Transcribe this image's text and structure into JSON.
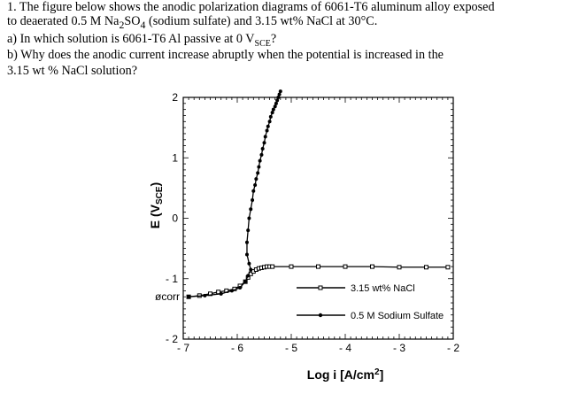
{
  "question": {
    "line1": "1. The figure below shows the anodic polarization diagrams of 6061-T6 aluminum alloy exposed",
    "line2_pre": "to deaerated 0.5 M Na",
    "line2_sub1": "2",
    "line2_mid": "SO",
    "line2_sub2": "4",
    "line2_post": " (sodium sulfate) and 3.15 wt% NaCl at 30°C.",
    "line3_pre": "a) In which solution is 6061-T6 Al passive at 0 V",
    "line3_sub": "SCE",
    "line3_post": "?",
    "line4": "b) Why does the anodic current increase abruptly when the potential is increased in the",
    "line5": "3.15 wt % NaCl solution?"
  },
  "chart_data": {
    "type": "line",
    "xlabel_main": "Log i [A/cm",
    "xlabel_sup": "2",
    "xlabel_end": "]",
    "ylabel_main": "E (V",
    "ylabel_sub": "SCE",
    "ylabel_end": ")",
    "xlim": [
      -7,
      -2
    ],
    "ylim": [
      -2,
      2
    ],
    "x_ticks": [
      -7,
      -6,
      -5,
      -4,
      -3,
      -2
    ],
    "x_tick_labels": [
      "- 7",
      "- 6",
      "- 5",
      "- 4",
      "- 3",
      "- 2"
    ],
    "y_ticks": [
      2,
      1,
      0,
      -1,
      -2
    ],
    "y_tick_labels": [
      "2",
      "1",
      "0",
      "- 1",
      "- 2"
    ],
    "ecorr_label": "øcorr",
    "ecorr_value": -1.3,
    "legend_placement": "lower-right",
    "series": [
      {
        "name": "3.15 wt% NaCl",
        "marker": "square",
        "x": [
          -6.9,
          -6.7,
          -6.5,
          -6.35,
          -6.2,
          -6.05,
          -5.95,
          -5.85,
          -5.8,
          -5.75,
          -5.7,
          -5.65,
          -5.6,
          -5.55,
          -5.5,
          -5.45,
          -5.4,
          -5.35,
          -5.0,
          -4.5,
          -4.0,
          -3.5,
          -3.0,
          -2.5,
          -2.1
        ],
        "y": [
          -1.3,
          -1.28,
          -1.25,
          -1.22,
          -1.2,
          -1.17,
          -1.12,
          -1.05,
          -0.98,
          -0.92,
          -0.88,
          -0.85,
          -0.83,
          -0.82,
          -0.81,
          -0.8,
          -0.8,
          -0.8,
          -0.8,
          -0.8,
          -0.8,
          -0.8,
          -0.81,
          -0.81,
          -0.81
        ]
      },
      {
        "name": "0.5 M Sodium Sulfate",
        "marker": "circle",
        "x": [
          -6.9,
          -6.6,
          -6.3,
          -6.1,
          -5.95,
          -5.85,
          -5.8,
          -5.75,
          -5.78,
          -5.82,
          -5.82,
          -5.8,
          -5.78,
          -5.75,
          -5.72,
          -5.7,
          -5.67,
          -5.65,
          -5.62,
          -5.6,
          -5.58,
          -5.55,
          -5.53,
          -5.5,
          -5.48,
          -5.45,
          -5.43,
          -5.4,
          -5.38,
          -5.35,
          -5.33,
          -5.3,
          -5.28,
          -5.26,
          -5.24,
          -5.22,
          -5.2
        ],
        "y": [
          -1.3,
          -1.28,
          -1.25,
          -1.2,
          -1.15,
          -1.05,
          -0.95,
          -0.85,
          -0.75,
          -0.6,
          -0.4,
          -0.2,
          0.0,
          0.15,
          0.3,
          0.45,
          0.55,
          0.65,
          0.75,
          0.85,
          0.95,
          1.05,
          1.15,
          1.25,
          1.35,
          1.45,
          1.52,
          1.6,
          1.68,
          1.75,
          1.8,
          1.85,
          1.9,
          1.95,
          2.0,
          2.05,
          2.1
        ]
      }
    ]
  }
}
